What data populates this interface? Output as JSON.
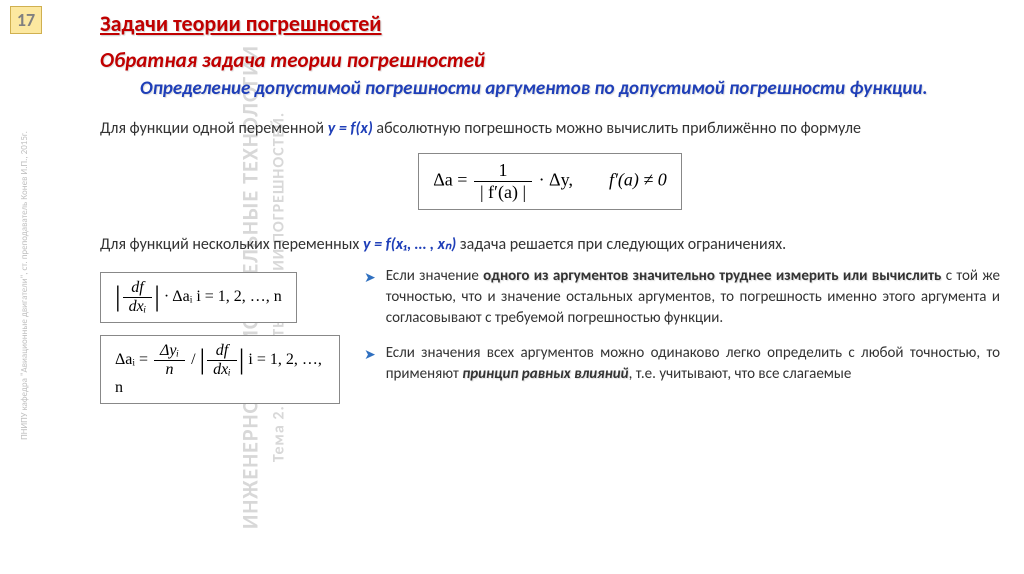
{
  "slide_number": "17",
  "watermark_line1": "ИНЖЕНЕРНО-ВЫЧИСЛИТЕЛЬНЫЕ ТЕХНОЛОГИИ",
  "watermark_line2": "Тема 2. ЭЛЕМЕНТЫ ТЕОРИИ ПОГРЕШНОСТЕЙ.",
  "watermark_side": "ПНИПУ кафедра \"Авиационные двигатели\", ст. преподаватель Конев И.П., 2015г.",
  "title": "Задачи теории погрешностей",
  "subtitle": "Обратная задача теории погрешностей",
  "def_blue1": "Определение допустимой погрешности аргументов по допустимой погрешности функции.",
  "para1_a": "Для функции одной переменной ",
  "para1_fx": "y = f(x)",
  "para1_b": " абсолютную погрешность можно вычислить приближённо по формуле",
  "formula1_lhs": "Δa = ",
  "formula1_num": "1",
  "formula1_den": "| f′(a) |",
  "formula1_rhs": " · Δy,",
  "formula1_cond": "f′(a) ≠ 0",
  "para2_a": "Для функций нескольких переменных ",
  "para2_fx": "y = f(x₁, … , xₙ)",
  "para2_b": " задача решается при следующих ограничениях.",
  "formula2_lhs": "",
  "formula2_num": "df",
  "formula2_den": "dxᵢ",
  "formula2_mid": " · Δaᵢ    i = 1, 2, …, n",
  "formula3_lhs": "Δaᵢ = ",
  "formula3_n1": "Δyᵢ",
  "formula3_d1": "n",
  "formula3_n2": "df",
  "formula3_d2": "dxᵢ",
  "formula3_rhs": "    i = 1, 2, …, n",
  "bullet1_bold": "одного из аргументов значительно труднее измерить или вычислить",
  "bullet1_a": "Если значение ",
  "bullet1_b": " с той же точностью, что и значение остальных аргументов, то погрешность именно этого аргумента и согласовывают с требуемой погрешностью функции.",
  "bullet2_a": "Если значения всех аргументов можно одинаково легко определить с любой точностью, то применяют ",
  "bullet2_bold": "принцип равных влияний",
  "bullet2_b": ", т.е. учитывают, что все слагаемые"
}
